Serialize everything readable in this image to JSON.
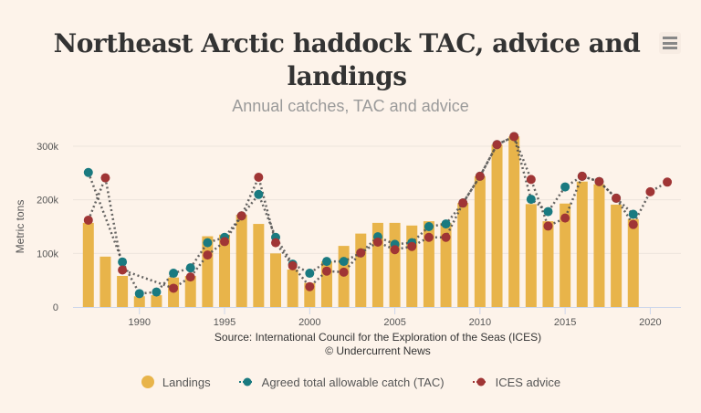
{
  "menu_icon": "hamburger-menu-icon",
  "source_lines": [
    "Source: International Council for the Exploration of the Seas (ICES)",
    "© Undercurrent News"
  ],
  "colors": {
    "background": "#fdf3ea",
    "landings": "#e8b44a",
    "tac": "#1a7a80",
    "advice": "#a03535",
    "connector": "#4a4a4a",
    "grid": "#ede4dc"
  },
  "chart_data": {
    "type": "bar",
    "title": "Northeast Arctic haddock TAC, advice and landings",
    "subtitle": "Annual catches, TAC and advice",
    "xlabel": "",
    "ylabel": "Metric tons",
    "xlim": [
      1986.1,
      2021.8
    ],
    "ylim": [
      0,
      320000
    ],
    "grid": true,
    "legend_position": "bottom",
    "x_ticks": [
      1990,
      1995,
      2000,
      2005,
      2010,
      2015,
      2020
    ],
    "x_tick_labels": [
      "1990",
      "1995",
      "2000",
      "2005",
      "2010",
      "2015",
      "2020"
    ],
    "y_ticks": [
      0,
      100000,
      200000,
      300000
    ],
    "y_tick_labels": [
      "0",
      "100k",
      "200k",
      "300k"
    ],
    "series": [
      {
        "name": "Landings",
        "kind": "bar",
        "x": [
          1987,
          1988,
          1989,
          1990,
          1991,
          1992,
          1993,
          1994,
          1995,
          1996,
          1997,
          1998,
          1999,
          2000,
          2001,
          2002,
          2003,
          2004,
          2005,
          2006,
          2007,
          2008,
          2009,
          2010,
          2011,
          2012,
          2013,
          2014,
          2015,
          2016,
          2017,
          2018,
          2019
        ],
        "values": [
          157000,
          94000,
          58000,
          20000,
          22000,
          55000,
          58000,
          132000,
          135000,
          172000,
          155000,
          100000,
          70000,
          45000,
          85000,
          114000,
          137000,
          157000,
          157000,
          152000,
          160000,
          157000,
          194000,
          244000,
          303000,
          318000,
          192000,
          160000,
          193000,
          234000,
          229000,
          191000,
          164000
        ]
      },
      {
        "name": "Agreed total allowable catch (TAC)",
        "kind": "line",
        "x": [
          1987,
          1989,
          1990,
          1991,
          1992,
          1993,
          1994,
          1995,
          1996,
          1997,
          1998,
          1999,
          2000,
          2001,
          2002,
          2003,
          2004,
          2005,
          2006,
          2007,
          2008,
          2009,
          2010,
          2011,
          2012,
          2013,
          2014,
          2015,
          2016,
          2017,
          2018,
          2019
        ],
        "values": [
          251000,
          84000,
          25000,
          28000,
          63000,
          73000,
          120000,
          130000,
          170000,
          210000,
          130000,
          80000,
          63000,
          85000,
          85000,
          101000,
          131000,
          117000,
          120000,
          150000,
          155000,
          194000,
          244000,
          303000,
          318000,
          201000,
          178000,
          224000,
          244000,
          234000,
          203000,
          173000
        ]
      },
      {
        "name": "ICES advice",
        "kind": "line",
        "x": [
          1987,
          1988,
          1989,
          1992,
          1993,
          1994,
          1995,
          1996,
          1997,
          1998,
          1999,
          2000,
          2001,
          2002,
          2003,
          2004,
          2005,
          2006,
          2007,
          2008,
          2009,
          2010,
          2011,
          2012,
          2013,
          2014,
          2015,
          2016,
          2017,
          2018,
          2019,
          2020,
          2021
        ],
        "values": [
          162000,
          241000,
          69000,
          35000,
          56000,
          97000,
          122000,
          170000,
          242000,
          120000,
          77000,
          38000,
          67000,
          65000,
          101000,
          121000,
          107000,
          113000,
          130000,
          130000,
          194000,
          244000,
          303000,
          318000,
          238000,
          151000,
          166000,
          244000,
          234000,
          203000,
          154000,
          215000,
          233000
        ]
      }
    ]
  }
}
